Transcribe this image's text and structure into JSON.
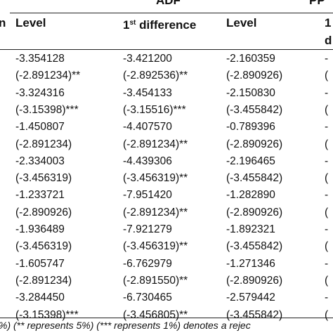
{
  "table": {
    "group_headers": [
      "ADF",
      "PP"
    ],
    "left_fragment": "n",
    "sub_headers": [
      {
        "main": "Level"
      },
      {
        "main": "1",
        "sup": "st",
        "rest": " difference"
      },
      {
        "main": "Level"
      },
      {
        "main": "1"
      }
    ],
    "sub_header_wrap": "d",
    "rows": [
      [
        "-3.354128",
        "-3.421200",
        "-2.160359",
        "-"
      ],
      [
        "(-2.891234)**",
        "(-2.892536)**",
        "(-2.890926)",
        "("
      ],
      [
        "-3.324316",
        "-3.454133",
        "-2.150830",
        "-"
      ],
      [
        "(-3.15398)***",
        "(-3.15516)***",
        "(-3.455842)",
        "("
      ],
      [
        "-1.450807",
        "-4.407570",
        "-0.789396",
        "-"
      ],
      [
        "(-2.891234)",
        "(-2.891234)**",
        "(-2.890926)",
        "("
      ],
      [
        "-2.334003",
        "-4.439306",
        "-2.196465",
        "-"
      ],
      [
        "(-3.456319)",
        "(-3.456319)**",
        "(-3.455842)",
        "("
      ],
      [
        "-1.233721",
        "-7.951420",
        "-1.282890",
        "-"
      ],
      [
        "(-2.890926)",
        "(-2.891234)**",
        "(-2.890926)",
        "("
      ],
      [
        "-1.936489",
        "-7.921279",
        "-1.892321",
        "-"
      ],
      [
        "(-3.456319)",
        "(-3.456319)**",
        "(-3.455842)",
        "("
      ],
      [
        "-1.605747",
        "-6.762979",
        "-1.271346",
        "-"
      ],
      [
        "(-2.891234)",
        "(-2.891550)**",
        "(-2.890926)",
        "("
      ],
      [
        "-3.284450",
        "-6.730465",
        "-2.579442",
        "-"
      ],
      [
        "(-3.15398)***",
        "(-3.456805)**",
        "(-3.455842)",
        "("
      ]
    ],
    "footnote": "%) (** represents 5%) (*** represents 1%) denotes a rejec"
  }
}
